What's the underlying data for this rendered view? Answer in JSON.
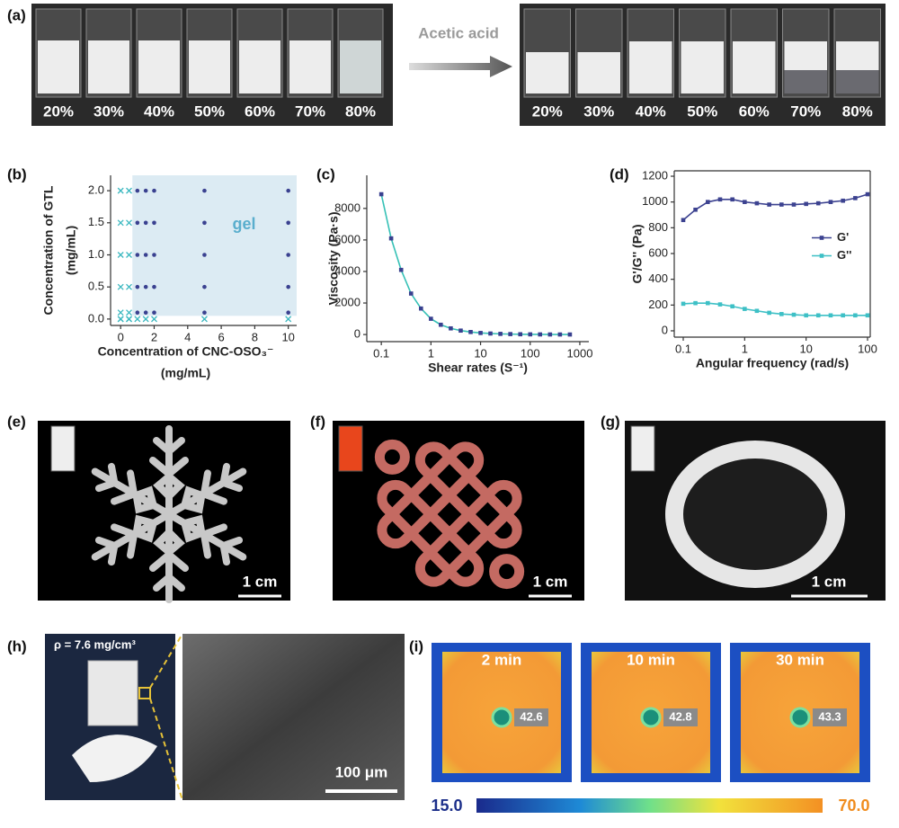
{
  "panel_labels": [
    "(a)",
    "(b)",
    "(c)",
    "(d)",
    "(e)",
    "(f)",
    "(g)",
    "(h)",
    "(i)"
  ],
  "panel_a": {
    "before": [
      "20%",
      "30%",
      "40%",
      "50%",
      "60%",
      "70%",
      "80%"
    ],
    "after": [
      "20%",
      "30%",
      "40%",
      "50%",
      "60%",
      "70%",
      "80%"
    ],
    "arrow_label": "Acetic acid"
  },
  "chart_data": [
    {
      "type": "scatter",
      "xlabel": [
        "Concentration of CNC-OSO₃⁻",
        "(mg/mL)"
      ],
      "ylabel": [
        "Concentration of GTL",
        "(mg/mL)"
      ],
      "annotation": "gel",
      "shaded_region": {
        "x": [
          0.7,
          10.5
        ],
        "y": [
          0.05,
          2.24
        ]
      },
      "shaded_region_color": "#dcebf3",
      "xlim": [
        -0.6,
        10.5
      ],
      "ylim": [
        -0.1,
        2.24
      ],
      "xticks": [
        0,
        2,
        4,
        6,
        8,
        10
      ],
      "yticks": [
        {
          "value": 0,
          "label": "0.0"
        },
        0.5,
        {
          "value": 1,
          "label": "1.0"
        },
        1.5,
        {
          "value": 2,
          "label": "2.0"
        }
      ],
      "series": [
        {
          "marker": "x",
          "color": "#3bb8c0",
          "x": [
            0,
            0.5,
            0,
            0.5,
            0,
            0.5,
            0,
            0.5,
            0,
            0.5,
            0,
            0.5,
            0,
            0.5,
            1,
            1.5,
            2,
            5,
            10
          ],
          "values": [
            2,
            2,
            1.5,
            1.5,
            1,
            1,
            0.5,
            0.5,
            0.1,
            0.1,
            0,
            0,
            0,
            0,
            0,
            0,
            0,
            0,
            0
          ]
        },
        {
          "marker": "dot",
          "color": "#3a4190",
          "x": [
            1,
            1.5,
            2,
            5,
            10,
            1,
            1.5,
            2,
            5,
            10,
            1,
            1.5,
            2,
            5,
            10,
            1,
            1.5,
            2,
            5,
            10,
            1,
            1.5,
            2,
            5,
            10
          ],
          "values": [
            2,
            2,
            2,
            2,
            2,
            1.5,
            1.5,
            1.5,
            1.5,
            1.5,
            1,
            1,
            1,
            1,
            1,
            0.5,
            0.5,
            0.5,
            0.5,
            0.5,
            0.1,
            0.1,
            0.1,
            0.1,
            0.1
          ]
        }
      ]
    },
    {
      "type": "line",
      "xscale": "log",
      "xlabel": "Shear rates (S⁻¹)",
      "ylabel": "Viscosity (Pa·s)",
      "xlim": [
        0.051,
        1520
      ],
      "ylim": [
        -450,
        10100
      ],
      "xticks": [
        0.1,
        1,
        10,
        100,
        1000
      ],
      "yticks": [
        0,
        2000,
        4000,
        6000,
        8000
      ],
      "x": [
        0.1,
        0.158,
        0.251,
        0.398,
        0.631,
        1,
        1.58,
        2.51,
        3.98,
        6.31,
        10,
        15.8,
        25.1,
        39.8,
        63.1,
        100,
        158,
        251,
        398,
        631
      ],
      "series": [
        {
          "color": "#36c1b6",
          "marker_color": "#39408f",
          "values": [
            8900,
            6100,
            4100,
            2600,
            1650,
            1000,
            620,
            390,
            250,
            160,
            100,
            65,
            42,
            28,
            18,
            12,
            8,
            5,
            4,
            3
          ]
        }
      ]
    },
    {
      "type": "line",
      "xscale": "log",
      "xlabel": "Angular frequency (rad/s)",
      "ylabel": "G'/G'' (Pa)",
      "legend": "center right",
      "xlim": [
        0.0714,
        110.6
      ],
      "ylim": [
        -49,
        1242
      ],
      "xticks": [
        0.1,
        1,
        10,
        100
      ],
      "yticks": [
        0,
        200,
        400,
        600,
        800,
        1000,
        1200
      ],
      "x": [
        0.1,
        0.158,
        0.251,
        0.398,
        0.631,
        1,
        1.58,
        2.51,
        3.98,
        6.31,
        10,
        15.8,
        25.1,
        39.8,
        63.1,
        100
      ],
      "series": [
        {
          "name": "G'",
          "color": "#3c4290",
          "marker_color": "#3c4290",
          "values": [
            860,
            940,
            1000,
            1020,
            1020,
            1000,
            990,
            980,
            980,
            980,
            985,
            990,
            1000,
            1010,
            1030,
            1060
          ]
        },
        {
          "name": "G''",
          "color": "#3ec0c6",
          "marker_color": "#3ec0c6",
          "values": [
            210,
            215,
            215,
            205,
            190,
            170,
            155,
            140,
            130,
            125,
            120,
            120,
            120,
            120,
            120,
            120
          ]
        }
      ]
    }
  ],
  "panel_e": {
    "scale_bar": "1 cm"
  },
  "panel_f": {
    "scale_bar": "1 cm"
  },
  "panel_g": {
    "scale_bar": "1 cm"
  },
  "panel_h": {
    "density": "ρ = 7.6 mg/cm³",
    "scale_bar": "100 μm"
  },
  "panel_i": {
    "times": [
      "2 min",
      "10 min",
      "30 min"
    ],
    "temperatures": [
      "42.6",
      "42.8",
      "43.3"
    ],
    "colorbar": [
      "15.0",
      "70.0"
    ]
  }
}
